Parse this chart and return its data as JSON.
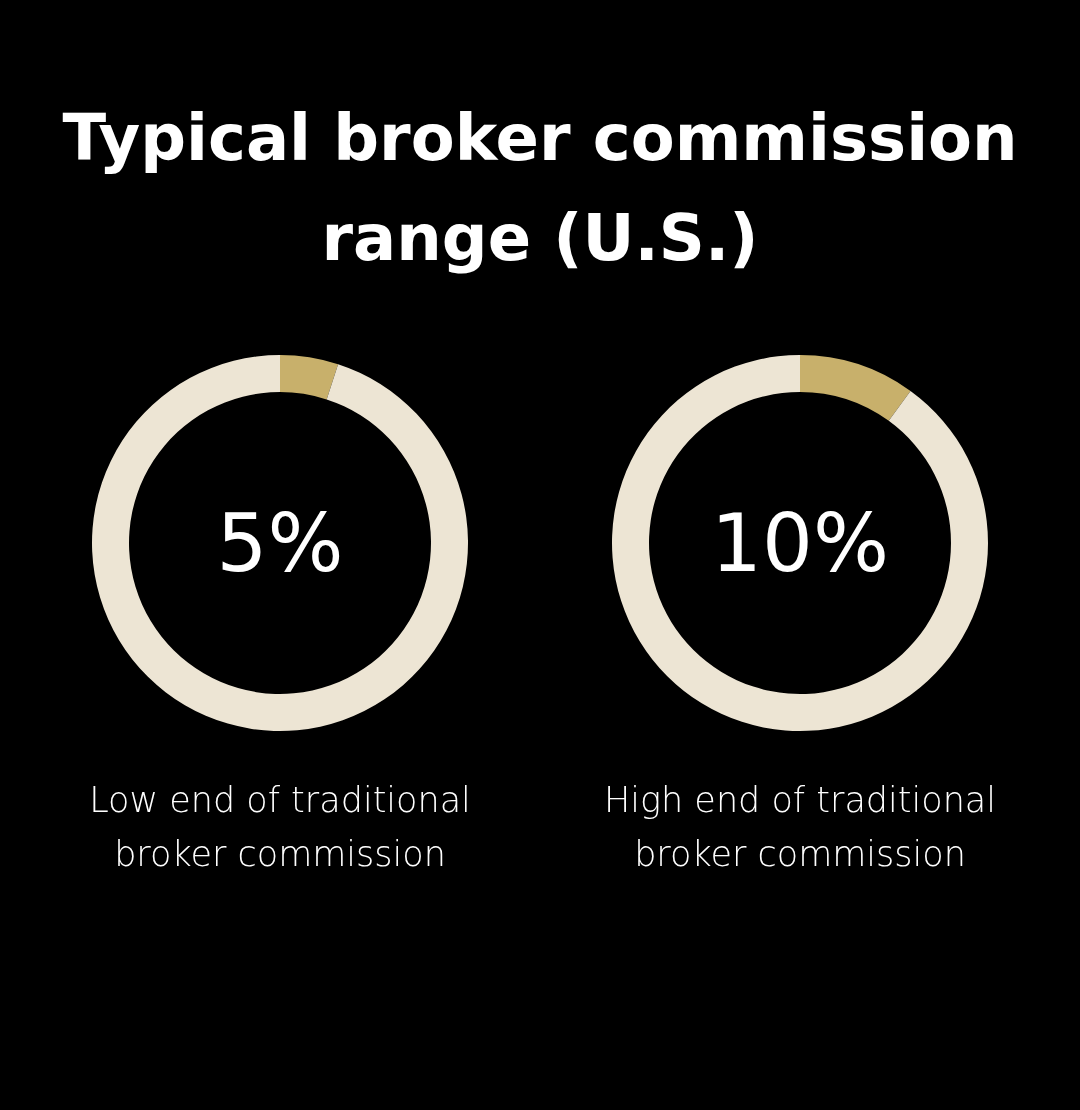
{
  "chart_data": [
    {
      "type": "donut",
      "title": "Typical broker commission range (U.S.)",
      "categories": [
        null,
        null
      ],
      "values": [
        5,
        95
      ],
      "colors": [
        "#c8b06b",
        "#ede5d4"
      ],
      "annotations": [
        "5%",
        "Low end of traditional broker commission"
      ]
    },
    {
      "type": "donut",
      "categories": [
        null,
        null
      ],
      "values": [
        10,
        90
      ],
      "colors": [
        "#c8b06b",
        "#ede5d4"
      ],
      "annotations": [
        "10%",
        "High end of traditional broker commission"
      ]
    }
  ]
}
